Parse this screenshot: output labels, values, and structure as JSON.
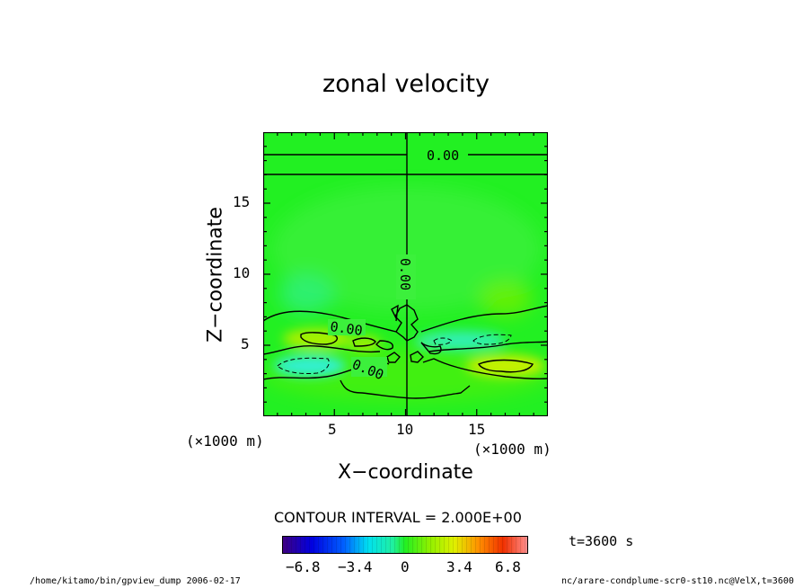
{
  "chart_data": {
    "type": "heatmap",
    "title": "zonal velocity",
    "xlabel": "X−coordinate",
    "ylabel": "Z−coordinate",
    "xlim": [
      0,
      20
    ],
    "ylim": [
      0,
      20
    ],
    "x_ticks": [
      "5",
      "10",
      "15"
    ],
    "y_ticks": [
      "5",
      "10",
      "15"
    ],
    "x_ticks_values": [
      5,
      10,
      15
    ],
    "y_ticks_values": [
      5,
      10,
      15
    ],
    "x_unit_left": "(×1000 m)",
    "x_unit_right": "(×1000 m)",
    "contour_interval": "CONTOUR INTERVAL = 2.000E+00",
    "contour_labels": [
      "0.00",
      "0.00",
      "0.00",
      "0.00"
    ],
    "colorbar_ticks": [
      "−6.8",
      "−3.4",
      "0",
      "3.4",
      "6.8"
    ],
    "colorbar_range": [
      -8,
      8
    ],
    "time_label": "t=3600 s",
    "colors": {
      "background": "#22f022",
      "positive": "#c8f000",
      "negative": "#30f0d0"
    }
  },
  "footer": {
    "left": "/home/kitamo/bin/gpview_dump  2006-02-17",
    "right": "nc/arare-condplume-scr0-st10.nc@VelX,t=3600"
  }
}
